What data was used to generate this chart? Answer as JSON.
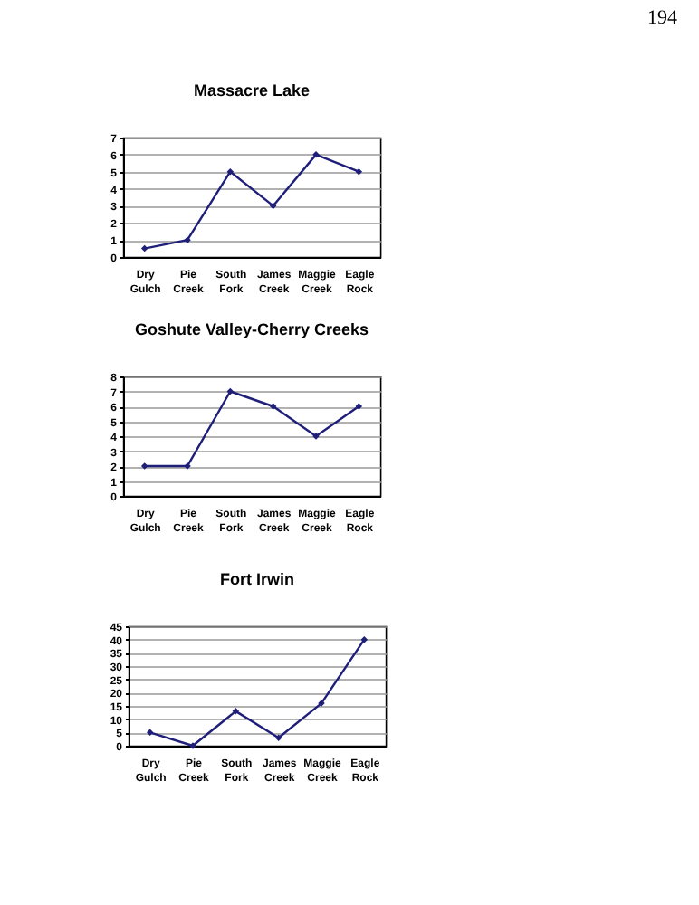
{
  "chart_data": [
    {
      "type": "line",
      "title": "Massacre Lake",
      "annotations": [
        "194"
      ],
      "categories": [
        "Dry Gulch",
        "Pie Creek",
        "South Fork",
        "James Creek",
        "Maggie Creek",
        "Eagle Rock"
      ],
      "series": [
        {
          "color": "#1f1f7a",
          "values": [
            0.5,
            1,
            5,
            3,
            6,
            5
          ]
        }
      ],
      "ylim": [
        0,
        7
      ],
      "yticks": [
        0,
        1,
        2,
        3,
        4,
        5,
        6,
        7
      ],
      "grid": "y",
      "marker": "diamond"
    },
    {
      "type": "line",
      "title": "Goshute Valley-Cherry Creeks",
      "categories": [
        "Dry Gulch",
        "Pie Creek",
        "South Fork",
        "James Creek",
        "Maggie Creek",
        "Eagle Rock"
      ],
      "series": [
        {
          "color": "#1f1f7a",
          "values": [
            2,
            2,
            7,
            6,
            4,
            6
          ]
        }
      ],
      "ylim": [
        0,
        8
      ],
      "yticks": [
        0,
        1,
        2,
        3,
        4,
        5,
        6,
        7,
        8
      ],
      "grid": "y",
      "marker": "diamond"
    },
    {
      "type": "line",
      "title": "Fort Irwin",
      "categories": [
        "Dry Gulch",
        "Pie Creek",
        "South Fork",
        "James Creek",
        "Maggie Creek",
        "Eagle Rock"
      ],
      "series": [
        {
          "color": "#1f1f7a",
          "values": [
            5,
            0,
            13,
            3,
            16,
            40
          ]
        }
      ],
      "ylim": [
        0,
        45
      ],
      "yticks": [
        0,
        5,
        10,
        15,
        20,
        25,
        30,
        35,
        40,
        45
      ],
      "grid": "y",
      "marker": "diamond"
    }
  ]
}
